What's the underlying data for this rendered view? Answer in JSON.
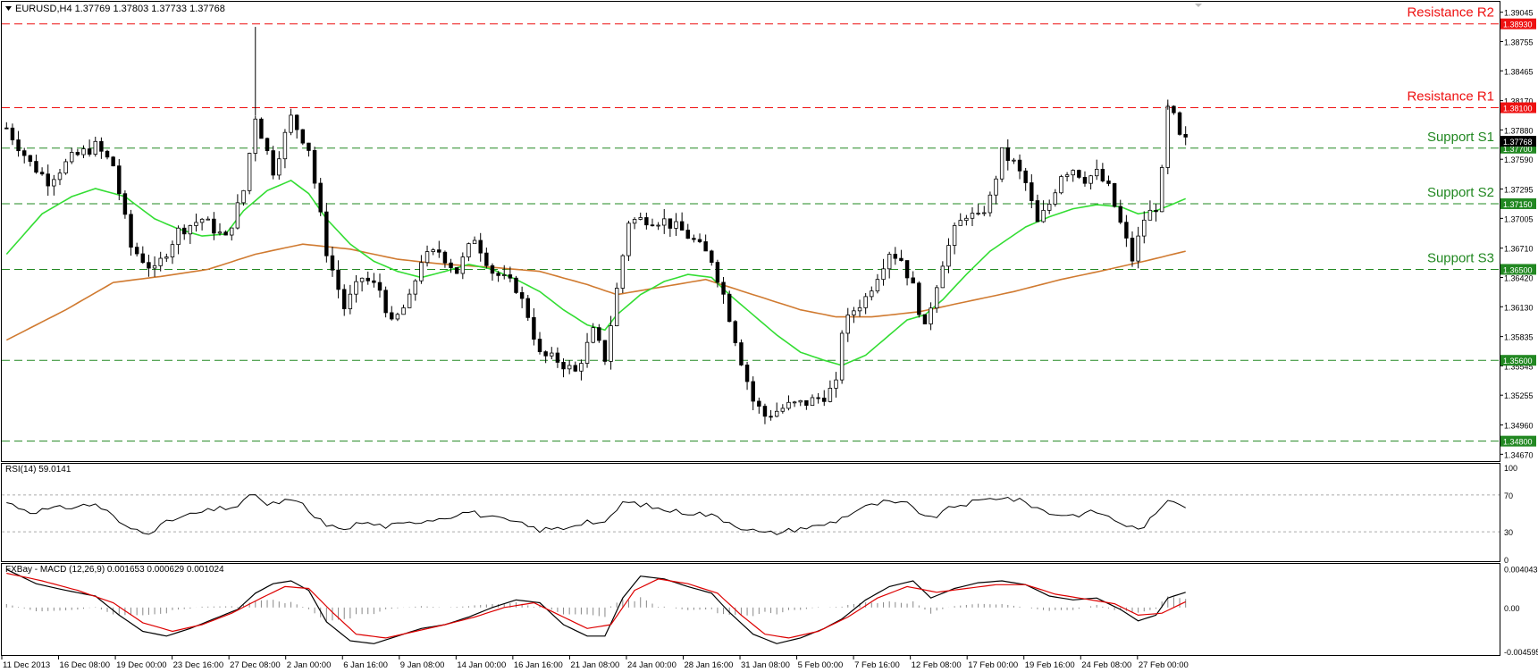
{
  "header": {
    "symbol_line": "EURUSD,H4  1.37769 1.37803 1.37733 1.37768",
    "rsi_label": "RSI(14) 59.0141",
    "macd_label": "FXBay - MACD (12,26,9) 0.001653 0.000629 0.001024"
  },
  "colors": {
    "background": "#ffffff",
    "candle": "#000000",
    "ma_fast": "#33dd33",
    "ma_slow": "#d07a30",
    "resistance": "#ee1111",
    "support": "#228822",
    "signal": "#dd0000",
    "current_price_bg": "#000000"
  },
  "chart_data": {
    "type": "candlestick",
    "symbol": "EURUSD",
    "timeframe": "H4",
    "price_axis": {
      "range": [
        1.3462,
        1.3906
      ],
      "ticks": [
        "1.39045",
        "1.38755",
        "1.38465",
        "1.38170",
        "1.37880",
        "1.37590",
        "1.37295",
        "1.37005",
        "1.36710",
        "1.36420",
        "1.36130",
        "1.35835",
        "1.35545",
        "1.35255",
        "1.34960",
        "1.34670"
      ]
    },
    "x_axis": {
      "labels": [
        "11 Dec 2013",
        "16 Dec 08:00",
        "19 Dec 00:00",
        "23 Dec 16:00",
        "27 Dec 08:00",
        "2 Jan 00:00",
        "6 Jan 16:00",
        "9 Jan 08:00",
        "14 Jan 00:00",
        "16 Jan 16:00",
        "21 Jan 08:00",
        "24 Jan 00:00",
        "28 Jan 16:00",
        "31 Jan 08:00",
        "5 Feb 00:00",
        "7 Feb 16:00",
        "12 Feb 08:00",
        "17 Feb 00:00",
        "19 Feb 16:00",
        "24 Feb 08:00",
        "27 Feb 00:00"
      ],
      "bar_count": 200
    },
    "levels": [
      {
        "name": "Resistance R2",
        "price": 1.3893,
        "label": "1.38930",
        "type": "resistance"
      },
      {
        "name": "Resistance R1",
        "price": 1.381,
        "label": "1.38100",
        "type": "resistance"
      },
      {
        "name": "Support S1",
        "price": 1.377,
        "label": "1.37700",
        "type": "support"
      },
      {
        "name": "Support S2",
        "price": 1.3715,
        "label": "1.37150",
        "type": "support"
      },
      {
        "name": "Support S3",
        "price": 1.365,
        "label": "1.36500",
        "type": "support"
      },
      {
        "name": "",
        "price": 1.356,
        "label": "1.35600",
        "type": "support"
      },
      {
        "name": "",
        "price": 1.348,
        "label": "1.34800",
        "type": "support"
      }
    ],
    "current_price": {
      "value": 1.37768,
      "label": "1.37768"
    },
    "price_path": [
      [
        0,
        1.379
      ],
      [
        4,
        1.3755
      ],
      [
        7,
        1.3738
      ],
      [
        11,
        1.376
      ],
      [
        15,
        1.3772
      ],
      [
        18,
        1.3753
      ],
      [
        21,
        1.3672
      ],
      [
        25,
        1.3648
      ],
      [
        29,
        1.3688
      ],
      [
        33,
        1.37
      ],
      [
        37,
        1.368
      ],
      [
        40,
        1.3728
      ],
      [
        42,
        1.3802
      ],
      [
        45,
        1.3748
      ],
      [
        48,
        1.38
      ],
      [
        51,
        1.377
      ],
      [
        54,
        1.3668
      ],
      [
        57,
        1.3612
      ],
      [
        60,
        1.3642
      ],
      [
        63,
        1.363
      ],
      [
        65,
        1.3595
      ],
      [
        68,
        1.362
      ],
      [
        70,
        1.366
      ],
      [
        73,
        1.3668
      ],
      [
        76,
        1.3648
      ],
      [
        79,
        1.3682
      ],
      [
        82,
        1.3648
      ],
      [
        86,
        1.3632
      ],
      [
        88,
        1.3605
      ],
      [
        90,
        1.3565
      ],
      [
        93,
        1.356
      ],
      [
        96,
        1.3548
      ],
      [
        99,
        1.3588
      ],
      [
        101,
        1.3562
      ],
      [
        103,
        1.363
      ],
      [
        105,
        1.3698
      ],
      [
        108,
        1.37
      ],
      [
        111,
        1.3698
      ],
      [
        114,
        1.3688
      ],
      [
        116,
        1.3678
      ],
      [
        119,
        1.366
      ],
      [
        121,
        1.3625
      ],
      [
        124,
        1.356
      ],
      [
        126,
        1.352
      ],
      [
        128,
        1.3505
      ],
      [
        132,
        1.3515
      ],
      [
        135,
        1.3518
      ],
      [
        138,
        1.3525
      ],
      [
        140,
        1.3535
      ],
      [
        141,
        1.359
      ],
      [
        143,
        1.361
      ],
      [
        145,
        1.3622
      ],
      [
        147,
        1.3645
      ],
      [
        149,
        1.3668
      ],
      [
        151,
        1.366
      ],
      [
        153,
        1.3632
      ],
      [
        155,
        1.359
      ],
      [
        156,
        1.3615
      ],
      [
        158,
        1.3658
      ],
      [
        160,
        1.3688
      ],
      [
        162,
        1.3705
      ],
      [
        164,
        1.37
      ],
      [
        166,
        1.372
      ],
      [
        168,
        1.3765
      ],
      [
        170,
        1.3755
      ],
      [
        172,
        1.3735
      ],
      [
        174,
        1.3695
      ],
      [
        176,
        1.3715
      ],
      [
        178,
        1.3745
      ],
      [
        180,
        1.375
      ],
      [
        182,
        1.374
      ],
      [
        184,
        1.3745
      ],
      [
        186,
        1.373
      ],
      [
        188,
        1.3695
      ],
      [
        190,
        1.366
      ],
      [
        192,
        1.37
      ],
      [
        194,
        1.3712
      ],
      [
        195,
        1.3745
      ],
      [
        196,
        1.3808
      ],
      [
        197,
        1.38
      ],
      [
        198,
        1.378
      ],
      [
        199,
        1.37768
      ]
    ],
    "ma_fast_path": [
      [
        0,
        1.3665
      ],
      [
        6,
        1.3705
      ],
      [
        11,
        1.3722
      ],
      [
        15,
        1.373
      ],
      [
        20,
        1.3722
      ],
      [
        25,
        1.37
      ],
      [
        29,
        1.369
      ],
      [
        33,
        1.3683
      ],
      [
        37,
        1.3685
      ],
      [
        40,
        1.3708
      ],
      [
        44,
        1.3728
      ],
      [
        48,
        1.3738
      ],
      [
        51,
        1.3725
      ],
      [
        54,
        1.37
      ],
      [
        58,
        1.3675
      ],
      [
        62,
        1.3658
      ],
      [
        66,
        1.3648
      ],
      [
        70,
        1.3642
      ],
      [
        74,
        1.3648
      ],
      [
        78,
        1.3655
      ],
      [
        82,
        1.365
      ],
      [
        86,
        1.364
      ],
      [
        90,
        1.3628
      ],
      [
        94,
        1.361
      ],
      [
        98,
        1.3595
      ],
      [
        101,
        1.359
      ],
      [
        103,
        1.3605
      ],
      [
        107,
        1.3625
      ],
      [
        111,
        1.3638
      ],
      [
        115,
        1.3645
      ],
      [
        119,
        1.3642
      ],
      [
        122,
        1.3625
      ],
      [
        126,
        1.3605
      ],
      [
        130,
        1.3585
      ],
      [
        134,
        1.3568
      ],
      [
        138,
        1.356
      ],
      [
        141,
        1.3555
      ],
      [
        145,
        1.3565
      ],
      [
        149,
        1.3585
      ],
      [
        152,
        1.36
      ],
      [
        155,
        1.3605
      ],
      [
        158,
        1.362
      ],
      [
        162,
        1.3645
      ],
      [
        166,
        1.3668
      ],
      [
        169,
        1.368
      ],
      [
        172,
        1.3692
      ],
      [
        176,
        1.3702
      ],
      [
        180,
        1.371
      ],
      [
        184,
        1.3714
      ],
      [
        188,
        1.3712
      ],
      [
        191,
        1.3705
      ],
      [
        194,
        1.3708
      ],
      [
        197,
        1.3715
      ],
      [
        199,
        1.372
      ]
    ],
    "ma_slow_path": [
      [
        0,
        1.358
      ],
      [
        10,
        1.361
      ],
      [
        18,
        1.3637
      ],
      [
        26,
        1.3643
      ],
      [
        34,
        1.365
      ],
      [
        42,
        1.3665
      ],
      [
        50,
        1.3675
      ],
      [
        58,
        1.367
      ],
      [
        66,
        1.366
      ],
      [
        74,
        1.3655
      ],
      [
        82,
        1.3652
      ],
      [
        90,
        1.3648
      ],
      [
        98,
        1.3635
      ],
      [
        103,
        1.3625
      ],
      [
        110,
        1.3632
      ],
      [
        118,
        1.364
      ],
      [
        126,
        1.3625
      ],
      [
        134,
        1.361
      ],
      [
        140,
        1.3603
      ],
      [
        146,
        1.3603
      ],
      [
        154,
        1.3608
      ],
      [
        162,
        1.3618
      ],
      [
        170,
        1.3628
      ],
      [
        178,
        1.364
      ],
      [
        186,
        1.365
      ],
      [
        192,
        1.3658
      ],
      [
        199,
        1.3668
      ]
    ],
    "rsi": {
      "range": [
        0,
        100
      ],
      "ticks": [
        "100",
        "70",
        "30",
        "0"
      ],
      "levels": [
        70,
        30
      ],
      "path": [
        [
          0,
          62
        ],
        [
          4,
          52
        ],
        [
          8,
          55
        ],
        [
          11,
          57
        ],
        [
          15,
          60
        ],
        [
          17,
          52
        ],
        [
          20,
          35
        ],
        [
          24,
          30
        ],
        [
          28,
          43
        ],
        [
          32,
          50
        ],
        [
          36,
          55
        ],
        [
          39,
          58
        ],
        [
          42,
          72
        ],
        [
          44,
          58
        ],
        [
          47,
          64
        ],
        [
          50,
          60
        ],
        [
          52,
          45
        ],
        [
          56,
          32
        ],
        [
          60,
          40
        ],
        [
          64,
          36
        ],
        [
          67,
          38
        ],
        [
          70,
          42
        ],
        [
          74,
          46
        ],
        [
          78,
          52
        ],
        [
          82,
          45
        ],
        [
          86,
          40
        ],
        [
          90,
          32
        ],
        [
          94,
          34
        ],
        [
          98,
          42
        ],
        [
          101,
          38
        ],
        [
          104,
          62
        ],
        [
          107,
          60
        ],
        [
          110,
          55
        ],
        [
          113,
          52
        ],
        [
          117,
          50
        ],
        [
          120,
          46
        ],
        [
          124,
          35
        ],
        [
          128,
          28
        ],
        [
          131,
          30
        ],
        [
          134,
          34
        ],
        [
          137,
          36
        ],
        [
          140,
          42
        ],
        [
          144,
          55
        ],
        [
          148,
          62
        ],
        [
          152,
          60
        ],
        [
          156,
          44
        ],
        [
          160,
          58
        ],
        [
          164,
          63
        ],
        [
          168,
          68
        ],
        [
          172,
          62
        ],
        [
          176,
          50
        ],
        [
          180,
          48
        ],
        [
          184,
          52
        ],
        [
          188,
          40
        ],
        [
          191,
          32
        ],
        [
          194,
          48
        ],
        [
          196,
          66
        ],
        [
          198,
          62
        ],
        [
          199,
          59
        ]
      ]
    },
    "macd": {
      "ticks": [
        "0.004043",
        "0.00",
        "-0.004595"
      ],
      "range": [
        -0.0048,
        0.0043
      ],
      "main_path": [
        [
          0,
          0.004
        ],
        [
          5,
          0.0025
        ],
        [
          10,
          0.0018
        ],
        [
          15,
          0.0012
        ],
        [
          19,
          -0.0008
        ],
        [
          23,
          -0.0025
        ],
        [
          27,
          -0.003
        ],
        [
          31,
          -0.0022
        ],
        [
          35,
          -0.0012
        ],
        [
          39,
          -0.0002
        ],
        [
          42,
          0.0015
        ],
        [
          45,
          0.0025
        ],
        [
          48,
          0.0028
        ],
        [
          51,
          0.0018
        ],
        [
          54,
          -0.0015
        ],
        [
          58,
          -0.0035
        ],
        [
          62,
          -0.0038
        ],
        [
          66,
          -0.003
        ],
        [
          70,
          -0.0022
        ],
        [
          74,
          -0.0018
        ],
        [
          78,
          -0.001
        ],
        [
          82,
          0.0
        ],
        [
          86,
          0.0008
        ],
        [
          90,
          0.0005
        ],
        [
          94,
          -0.0018
        ],
        [
          98,
          -0.003
        ],
        [
          101,
          -0.003
        ],
        [
          104,
          0.001
        ],
        [
          107,
          0.0033
        ],
        [
          111,
          0.003
        ],
        [
          115,
          0.0022
        ],
        [
          119,
          0.0015
        ],
        [
          122,
          -0.0005
        ],
        [
          126,
          -0.0028
        ],
        [
          130,
          -0.0038
        ],
        [
          134,
          -0.0032
        ],
        [
          138,
          -0.0022
        ],
        [
          141,
          -0.0012
        ],
        [
          145,
          0.0008
        ],
        [
          149,
          0.0022
        ],
        [
          153,
          0.0028
        ],
        [
          156,
          0.001
        ],
        [
          160,
          0.002
        ],
        [
          164,
          0.0026
        ],
        [
          168,
          0.0028
        ],
        [
          172,
          0.0024
        ],
        [
          176,
          0.0012
        ],
        [
          180,
          0.0008
        ],
        [
          184,
          0.001
        ],
        [
          188,
          -0.0002
        ],
        [
          191,
          -0.0014
        ],
        [
          194,
          -0.0008
        ],
        [
          196,
          0.001
        ],
        [
          199,
          0.0016
        ]
      ],
      "signal_path": [
        [
          0,
          0.0036
        ],
        [
          6,
          0.0028
        ],
        [
          12,
          0.0018
        ],
        [
          18,
          0.0005
        ],
        [
          23,
          -0.0016
        ],
        [
          28,
          -0.0025
        ],
        [
          33,
          -0.0018
        ],
        [
          38,
          -0.0006
        ],
        [
          43,
          0.001
        ],
        [
          47,
          0.0022
        ],
        [
          51,
          0.002
        ],
        [
          55,
          -0.0005
        ],
        [
          59,
          -0.0028
        ],
        [
          64,
          -0.0032
        ],
        [
          69,
          -0.0025
        ],
        [
          74,
          -0.0018
        ],
        [
          79,
          -0.001
        ],
        [
          84,
          0.0
        ],
        [
          89,
          0.0005
        ],
        [
          94,
          -0.001
        ],
        [
          98,
          -0.0022
        ],
        [
          102,
          -0.0018
        ],
        [
          106,
          0.0018
        ],
        [
          110,
          0.003
        ],
        [
          115,
          0.0025
        ],
        [
          120,
          0.0015
        ],
        [
          124,
          -0.0008
        ],
        [
          128,
          -0.0028
        ],
        [
          132,
          -0.0032
        ],
        [
          137,
          -0.0025
        ],
        [
          142,
          -0.001
        ],
        [
          147,
          0.001
        ],
        [
          152,
          0.0022
        ],
        [
          157,
          0.0016
        ],
        [
          162,
          0.002
        ],
        [
          167,
          0.0024
        ],
        [
          172,
          0.0024
        ],
        [
          177,
          0.0014
        ],
        [
          182,
          0.0009
        ],
        [
          187,
          0.0004
        ],
        [
          191,
          -0.0008
        ],
        [
          195,
          -0.0006
        ],
        [
          199,
          0.0006
        ]
      ]
    }
  }
}
